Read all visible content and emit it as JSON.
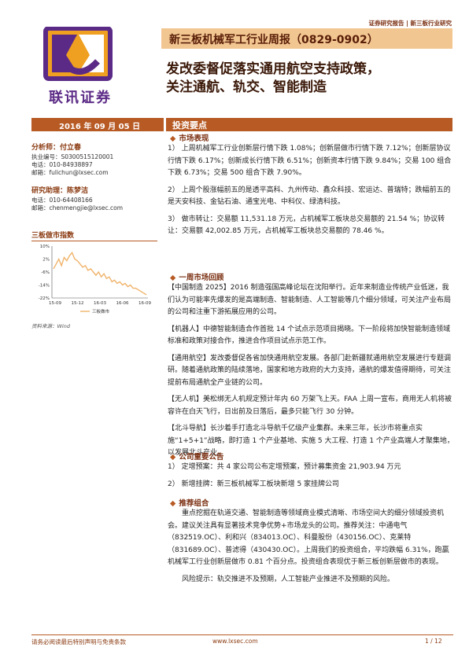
{
  "header": {
    "tag": "证券研究报告 | 新三板行业研究",
    "report_title": "新三板机械军工行业周报（0829-0902）",
    "headline_1": "发改委督促落实通用航空支持政策，",
    "headline_2": "关注通航、轨交、智能制造",
    "logo_text": "联讯证券"
  },
  "date": "2016 年 09 月 05 日",
  "analysts": [
    {
      "role_name": "分析师：付立春",
      "license": "执业编号：S0300515120001",
      "phone": "电话：010-84938897",
      "email": "邮箱：fulichun@lxsec.com"
    },
    {
      "role_name": "研究助理：陈梦洁",
      "phone": "电话：010-64408166",
      "email": "邮箱：chenmengjie@lxsec.com"
    }
  ],
  "chart_data": {
    "type": "line",
    "title": "三板做市指数",
    "source": "资料来源：Wind",
    "legend": "三板做市",
    "y_ticks": [
      "10%",
      "2%",
      "-6%",
      "-14%",
      "-22%"
    ],
    "ylim": [
      -22,
      10
    ],
    "x_ticks": [
      "15-09",
      "15-12",
      "16-03",
      "16-06",
      "16-09"
    ],
    "series": [
      {
        "name": "三板做市",
        "values": [
          -4,
          -1,
          2,
          -2,
          3,
          1,
          4,
          6,
          2,
          1,
          -1,
          -3,
          -2,
          -5,
          -4,
          -6,
          -8,
          -6,
          -9,
          -7,
          -10,
          -9,
          -12,
          -11,
          -13,
          -12,
          -14,
          -13,
          -15,
          -14,
          -16,
          -16,
          -17,
          -18,
          -19,
          -20
        ]
      }
    ]
  },
  "sections": {
    "highlights": "投资要点",
    "market": "市场表现",
    "review": "一周市场回顾",
    "company": "公司重要公告",
    "portfolio": "推荐组合"
  },
  "market_paras": [
    "1） 上周机械军工行业创新层行情下跌 1.08%；创新层做市行情下跌 7.12%；创新层协议行情下跌 6.17%；创新成长行情下跌 6.51%；创新资本行情下跌 9.84%；交易 100 组合下跌 6.73%；交易 500 组合下跌 7.90%。",
    "2） 上周个股涨幅前五的是透平高科、九州传动、鑫众科技、宏运达、普瑞特；跌幅前五的是天安科技、金钻石油、通宝光电、中科仪、绿清科技。",
    "3） 做市转让：交易额 11,531.18 万元，占机械军工板块总交易额的 21.54 %；协议转让：交易额 42,002.85 万元，占机械军工板块总交易额的 78.46 %。"
  ],
  "review_paras": [
    "【中国制造 2025】2016 制造强国高峰论坛在沈阳举行。近年来制造业传统产业低迷，我们认为可能率先爆发的是高端制造、智能制造、人工智能等几个细分领域，可关注产业布局的公司和注重下游拓展应用的公司。",
    "【机器人】中德智能制造合作首批 14 个试点示范项目揭晓。下一阶段将加快智能制造领域标准和政策对接合作，推进合作项目试点示范工作。",
    "【通用航空】发改委督促各省加快通用航空发展。各部门赴新疆就通用航空发展进行专题调研。随着通航政策的陆续落地，国家和地方政府的大力支持，通航的爆发值得期待，可关注提前布局通航全产业链的公司。",
    "【无人机】美松绑无人机规定预计年内 60 万架飞上天。FAA 上周一宣布，商用无人机将被容许在白天飞行，日出前及日落后，最多只能飞行 30 分钟。",
    "【北斗导航】长沙着手打造北斗导航千亿级产业集群。未来三年，长沙市将重点实施“1+5+1”战略，即打造 1 个产业基地、实施 5 大工程、打造 1 个产业高端人才聚集地，以发展北斗产业。"
  ],
  "company_paras": [
    "1） 定增预案：共 4 家公司公布定增预案，预计募集资金 21,903.94 万元",
    "2） 新增挂牌：新三板机械军工板块新增 5 家挂牌公司"
  ],
  "portfolio_paras": [
    "重点挖掘在轨道交通、智能制造等领域商业模式清晰、市场空间大的细分领域投资机会。建议关注具有显著技术竞争优势+市场龙头的公司。推荐关注：中通电气（832519.OC）、利和兴（834013.OC）、科曼股份（430156.OC）、克莱特（831689.OC）、普滤得（430430.OC）。上周我们的投资组合，平均跌幅 6.31%，跑赢机械军工行业创新层做市 0.81 个百分点。投资组合表现优于新三板创新层做市的表现。",
    "风险提示：轨交推进不及预期，人工智能产业推进不及预期的风险。"
  ],
  "footer": {
    "left": "请务必阅读最后特别声明与免责条款",
    "center": "www.lxsec.com",
    "right": "1 / 12"
  },
  "colors": {
    "accent": "#b75a24",
    "banner": "#f2c691",
    "logo_orange": "#f0a020",
    "logo_purple": "#5b2a86"
  }
}
